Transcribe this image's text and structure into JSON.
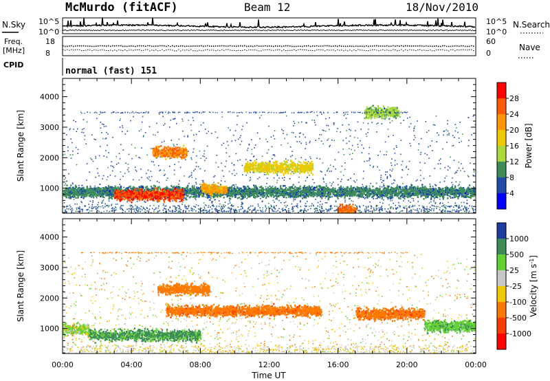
{
  "header": {
    "station": "McMurdo (fitACF)",
    "beam": "Beam 12",
    "date": "18/Nov/2010"
  },
  "strip_panels": {
    "nsky": {
      "label": "N.Sky",
      "ticks": [
        "10^5",
        "10^0"
      ]
    },
    "nsearch": {
      "label": "N.Search",
      "ticks": [
        "10^5",
        "10^0"
      ]
    },
    "freq": {
      "label_line1": "Freq.",
      "label_line2": "[MHz]",
      "ticks": [
        "18",
        "8"
      ]
    },
    "nave": {
      "label": "Nave",
      "ticks": [
        "60",
        "0"
      ]
    },
    "cpid": {
      "label": "CPID",
      "value": "normal (fast) 151"
    }
  },
  "chart_data": [
    {
      "type": "heatmap",
      "quantity": "Power",
      "xlabel": "",
      "ylabel": "Slant Range [km]",
      "xlim": [
        0,
        24
      ],
      "ylim": [
        180,
        4600
      ],
      "y_ticks": [
        1000,
        2000,
        3000,
        4000
      ],
      "colorbar": {
        "label": "Power [dB]",
        "ticks": [
          "28",
          "24",
          "20",
          "16",
          "12",
          "8",
          "4"
        ],
        "colors": [
          "#ff0000",
          "#ff5a00",
          "#ff9600",
          "#f0c800",
          "#a8d83c",
          "#3c8c5a",
          "#1e4ba8",
          "#0000ff"
        ]
      },
      "features": [
        {
          "t_start": 0.0,
          "t_end": 24.0,
          "range_km": 900,
          "level_dB": 10
        },
        {
          "t_start": 3.0,
          "t_end": 7.0,
          "range_km": 800,
          "level_dB": 28
        },
        {
          "t_start": 5.2,
          "t_end": 7.2,
          "range_km": 2200,
          "level_dB": 24
        },
        {
          "t_start": 8.0,
          "t_end": 9.5,
          "range_km": 1000,
          "level_dB": 22
        },
        {
          "t_start": 10.5,
          "t_end": 14.5,
          "range_km": 1700,
          "level_dB": 18
        },
        {
          "t_start": 16.0,
          "t_end": 17.0,
          "range_km": 300,
          "level_dB": 26
        },
        {
          "t_start": 17.5,
          "t_end": 19.5,
          "range_km": 3500,
          "level_dB": 14
        }
      ]
    },
    {
      "type": "heatmap",
      "quantity": "Velocity",
      "xlabel": "Time UT",
      "ylabel": "Slant Range [km]",
      "xlim": [
        0,
        24
      ],
      "ylim": [
        180,
        4600
      ],
      "y_ticks": [
        1000,
        2000,
        3000,
        4000
      ],
      "x_tick_labels": [
        "00:00",
        "04:00",
        "08:00",
        "12:00",
        "16:00",
        "20:00",
        "00:00"
      ],
      "colorbar": {
        "label": "Velocity [m s^-1]",
        "ticks": [
          "1000",
          "500",
          "25",
          "-25",
          "-100",
          "-500",
          "-1000"
        ],
        "colors": [
          "#1e3ca0",
          "#3c8c5a",
          "#64d232",
          "#c8c8c8",
          "#f0c800",
          "#ff7800",
          "#ff3c00",
          "#ff0000"
        ]
      },
      "features": [
        {
          "t_start": 1.5,
          "t_end": 8.0,
          "range_km": 800,
          "velocity_ms": 300
        },
        {
          "t_start": 0.0,
          "t_end": 1.5,
          "range_km": 1000,
          "velocity_ms": 50
        },
        {
          "t_start": 6.0,
          "t_end": 15.0,
          "range_km": 1600,
          "velocity_ms": -400
        },
        {
          "t_start": 5.5,
          "t_end": 8.5,
          "range_km": 2300,
          "velocity_ms": -300
        },
        {
          "t_start": 17.0,
          "t_end": 21.0,
          "range_km": 1500,
          "velocity_ms": -400
        },
        {
          "t_start": 21.0,
          "t_end": 24.0,
          "range_km": 1100,
          "velocity_ms": 200
        }
      ]
    }
  ]
}
